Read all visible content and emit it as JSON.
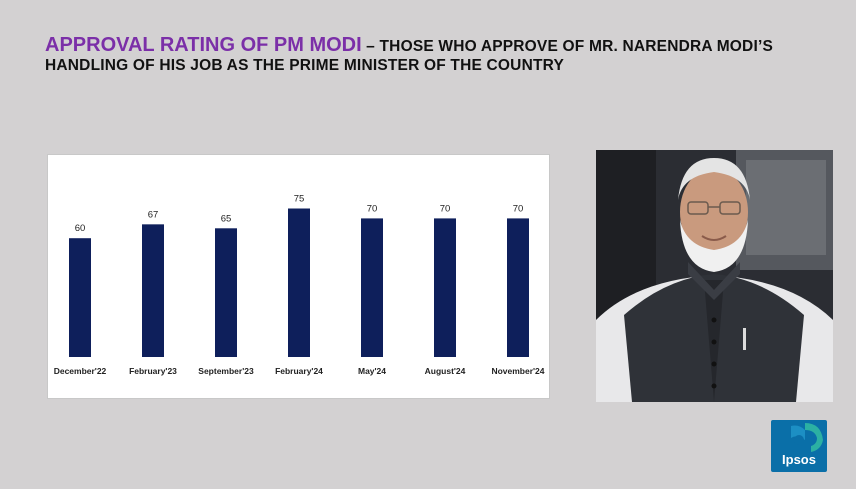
{
  "title": {
    "highlight": "APPROVAL RATING OF PM MODI",
    "rest": " – THOSE WHO APPROVE OF MR. NARENDRA MODI’S HANDLING OF HIS JOB AS THE PRIME MINISTER OF THE COUNTRY"
  },
  "colors": {
    "title_accent": "#7b2fa8",
    "bar": "#0e1f5b",
    "background": "#d3d1d2",
    "logo": "#0a6fa8"
  },
  "chart_data": {
    "type": "bar",
    "categories": [
      "December'22",
      "February'23",
      "September'23",
      "February'24",
      "May'24",
      "August'24",
      "November'24"
    ],
    "values": [
      60,
      67,
      65,
      75,
      70,
      70,
      70
    ],
    "data_labels": [
      "60",
      "67",
      "65",
      "75",
      "70",
      "70",
      "70"
    ],
    "title": "",
    "xlabel": "",
    "ylabel": "",
    "grid": false,
    "legend": "none",
    "y_axis_visible": false
  },
  "photo": {
    "icon": "portrait-photo-icon"
  },
  "logo": {
    "text": "Ipsos",
    "icon": "ipsos-logo-icon"
  }
}
